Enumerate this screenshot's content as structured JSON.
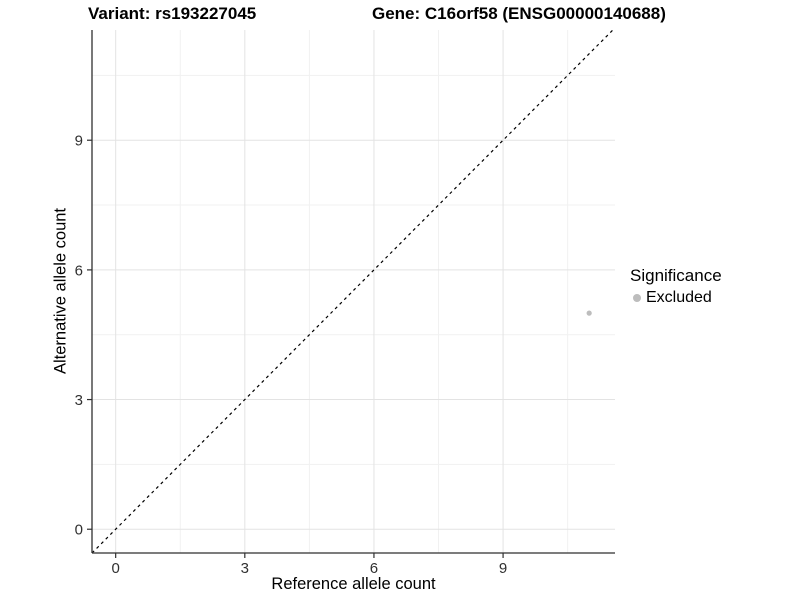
{
  "header": {
    "variant_title": "Variant: rs193227045",
    "gene_title": "Gene: C16orf58 (ENSG00000140688)"
  },
  "chart_data": {
    "type": "scatter",
    "title": "Variant: rs193227045 / Gene: C16orf58 (ENSG00000140688)",
    "xlabel": "Reference allele count",
    "ylabel": "Alternative allele count",
    "xlim": [
      -0.55,
      11.6
    ],
    "ylim": [
      -0.55,
      11.55
    ],
    "x_ticks": [
      0,
      3,
      6,
      9
    ],
    "y_ticks": [
      0,
      3,
      6,
      9
    ],
    "x_minor_ticks": [
      1.5,
      4.5,
      7.5,
      10.5
    ],
    "y_minor_ticks": [
      1.5,
      4.5,
      7.5,
      10.5
    ],
    "grid": "major and minor, light gray on white",
    "series": [
      {
        "name": "Excluded",
        "color": "#bdbdbd",
        "marker": "circle",
        "points": [
          {
            "x": 11,
            "y": 5
          }
        ]
      }
    ],
    "reference_line": {
      "kind": "identity y=x",
      "style": "dashed",
      "color": "#000000"
    },
    "legend": {
      "title": "Significance",
      "position": "right",
      "items": [
        {
          "label": "Excluded",
          "color": "#bdbdbd"
        }
      ]
    }
  },
  "colors": {
    "background": "#ffffff",
    "grid_major": "#e3e3e3",
    "grid_minor": "#f1f1f1",
    "axis_line": "#2f2f2f",
    "tick_text": "#303030",
    "point": "#bdbdbd"
  }
}
